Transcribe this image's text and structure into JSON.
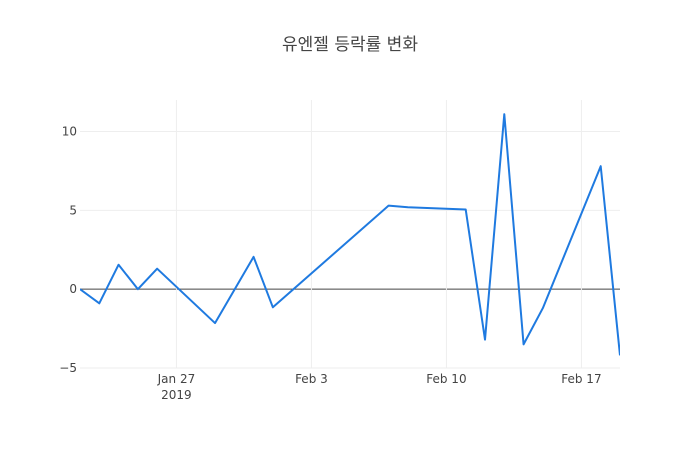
{
  "chart_data": {
    "type": "line",
    "title": "유엔젤 등락률 변화",
    "xlabel": "",
    "ylabel": "",
    "xlim": [
      "2019-01-22",
      "2019-02-19"
    ],
    "ylim": [
      -5,
      12
    ],
    "grid": true,
    "x_ticks": [
      {
        "date": "2019-01-27",
        "label": "Jan 27",
        "sublabel": "2019"
      },
      {
        "date": "2019-02-03",
        "label": "Feb 3",
        "sublabel": ""
      },
      {
        "date": "2019-02-10",
        "label": "Feb 10",
        "sublabel": ""
      },
      {
        "date": "2019-02-17",
        "label": "Feb 17",
        "sublabel": ""
      }
    ],
    "y_ticks": [
      -5,
      0,
      5,
      10
    ],
    "series": [
      {
        "color": "#1f7ae0",
        "x": [
          "2019-01-22",
          "2019-01-23",
          "2019-01-24",
          "2019-01-25",
          "2019-01-26",
          "2019-01-29",
          "2019-01-31",
          "2019-02-01",
          "2019-02-07",
          "2019-02-08",
          "2019-02-11",
          "2019-02-12",
          "2019-02-13",
          "2019-02-14",
          "2019-02-15",
          "2019-02-18",
          "2019-02-19"
        ],
        "y": [
          0,
          -0.9,
          1.55,
          0,
          1.3,
          -2.15,
          2.05,
          -1.15,
          5.3,
          5.2,
          5.05,
          -3.2,
          11.1,
          -3.5,
          -1.2,
          7.8,
          -4.2
        ]
      }
    ]
  }
}
